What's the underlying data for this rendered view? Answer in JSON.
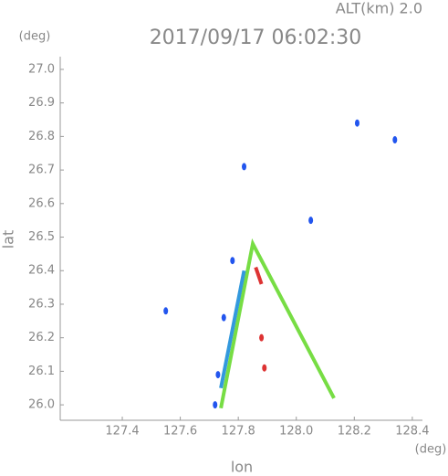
{
  "chart_data": {
    "type": "scatter",
    "title": "2017/09/17 06:02:30",
    "subtitle": "ALT(km) 2.0",
    "x_label": "lon",
    "y_label": "lat",
    "x_unit": "(deg)",
    "y_unit": "(deg)",
    "xlim": [
      127.186,
      128.435
    ],
    "ylim": [
      25.954,
      27.038
    ],
    "xticks": [
      127.4,
      127.6,
      127.8,
      {
        "value": 128.0,
        "label": "128.0"
      },
      128.2,
      128.4
    ],
    "yticks": [
      {
        "value": 26.0,
        "label": "26.0"
      },
      26.1,
      26.2,
      26.3,
      26.4,
      26.5,
      26.6,
      26.7,
      26.8,
      26.9,
      {
        "value": 27.0,
        "label": "27.0"
      }
    ],
    "series": [
      {
        "color": "#77dd44",
        "line": true,
        "x": [
          127.74,
          127.85,
          128.13
        ],
        "y": [
          25.99,
          26.48,
          26.02
        ]
      },
      {
        "color": "#3399dd",
        "line": true,
        "x": [
          127.74,
          127.82
        ],
        "y": [
          26.05,
          26.4
        ]
      },
      {
        "color": "#dd3333",
        "line": true,
        "x": [
          127.86,
          127.88
        ],
        "y": [
          26.41,
          26.36
        ]
      },
      {
        "color": "#2255ee",
        "line": false,
        "x": [
          128.34,
          127.82,
          128.05,
          127.55,
          127.78,
          127.75,
          127.73,
          127.72,
          128.21
        ],
        "y": [
          26.79,
          26.71,
          26.55,
          26.28,
          26.43,
          26.26,
          26.09,
          26.0,
          26.84
        ]
      },
      {
        "color": "#dd3333",
        "line": false,
        "x": [
          127.88,
          127.89
        ],
        "y": [
          26.2,
          26.11
        ]
      }
    ]
  }
}
